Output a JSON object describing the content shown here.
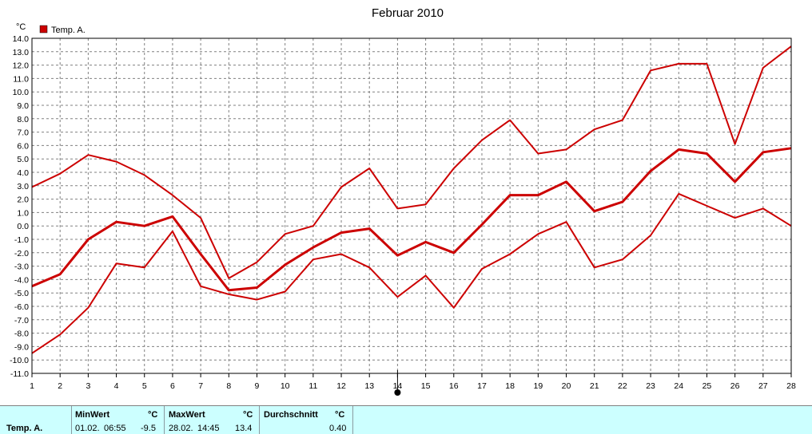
{
  "chart_data": {
    "type": "line",
    "title": "Februar 2010",
    "ylabel": "°C",
    "legend": {
      "label": "Temp. A.",
      "color": "#cc0000",
      "placement": "top-left"
    },
    "x": [
      1,
      2,
      3,
      4,
      5,
      6,
      7,
      8,
      9,
      10,
      11,
      12,
      13,
      14,
      15,
      16,
      17,
      18,
      19,
      20,
      21,
      22,
      23,
      24,
      25,
      26,
      27,
      28
    ],
    "xlim": [
      1,
      28
    ],
    "ylim": [
      -11,
      14
    ],
    "ytick_step": 1,
    "grid": true,
    "series": [
      {
        "name": "",
        "role": "max",
        "values": [
          2.9,
          3.9,
          5.3,
          4.8,
          3.8,
          2.3,
          0.6,
          -3.9,
          -2.7,
          -0.6,
          0.0,
          2.9,
          4.3,
          1.3,
          1.6,
          4.3,
          6.4,
          7.9,
          5.4,
          5.7,
          7.2,
          7.9,
          11.6,
          12.1,
          12.1,
          6.1,
          11.8,
          13.4
        ]
      },
      {
        "name": "",
        "role": "mean",
        "values": [
          -4.5,
          -3.6,
          -1.0,
          0.3,
          0.0,
          0.7,
          -2.1,
          -4.8,
          -4.6,
          -2.9,
          -1.6,
          -0.5,
          -0.2,
          -2.2,
          -1.2,
          -2.0,
          0.1,
          2.3,
          2.3,
          3.3,
          1.1,
          1.8,
          4.1,
          5.7,
          5.4,
          3.3,
          5.5,
          5.8
        ]
      },
      {
        "name": "",
        "role": "min",
        "values": [
          -9.5,
          -8.1,
          -6.1,
          -2.8,
          -3.1,
          -0.4,
          -4.5,
          -5.1,
          -5.5,
          -4.9,
          -2.5,
          -2.1,
          -3.1,
          -5.3,
          -3.7,
          -6.1,
          -3.2,
          -2.1,
          -0.6,
          0.3,
          -3.1,
          -2.5,
          -0.7,
          2.4,
          1.5,
          0.6,
          1.3,
          0.0
        ]
      }
    ],
    "marker": {
      "x": 14
    }
  },
  "stats": {
    "row_label": "Temp. A.",
    "min_header": "MinWert",
    "min_unit": "°C",
    "min_date": "01.02.",
    "min_time": "06:55",
    "min_value": "-9.5",
    "max_header": "MaxWert",
    "max_unit": "°C",
    "max_date": "28.02.",
    "max_time": "14:45",
    "max_value": "13.4",
    "avg_header": "Durchschnitt",
    "avg_unit": "°C",
    "avg_value": "0.40"
  }
}
